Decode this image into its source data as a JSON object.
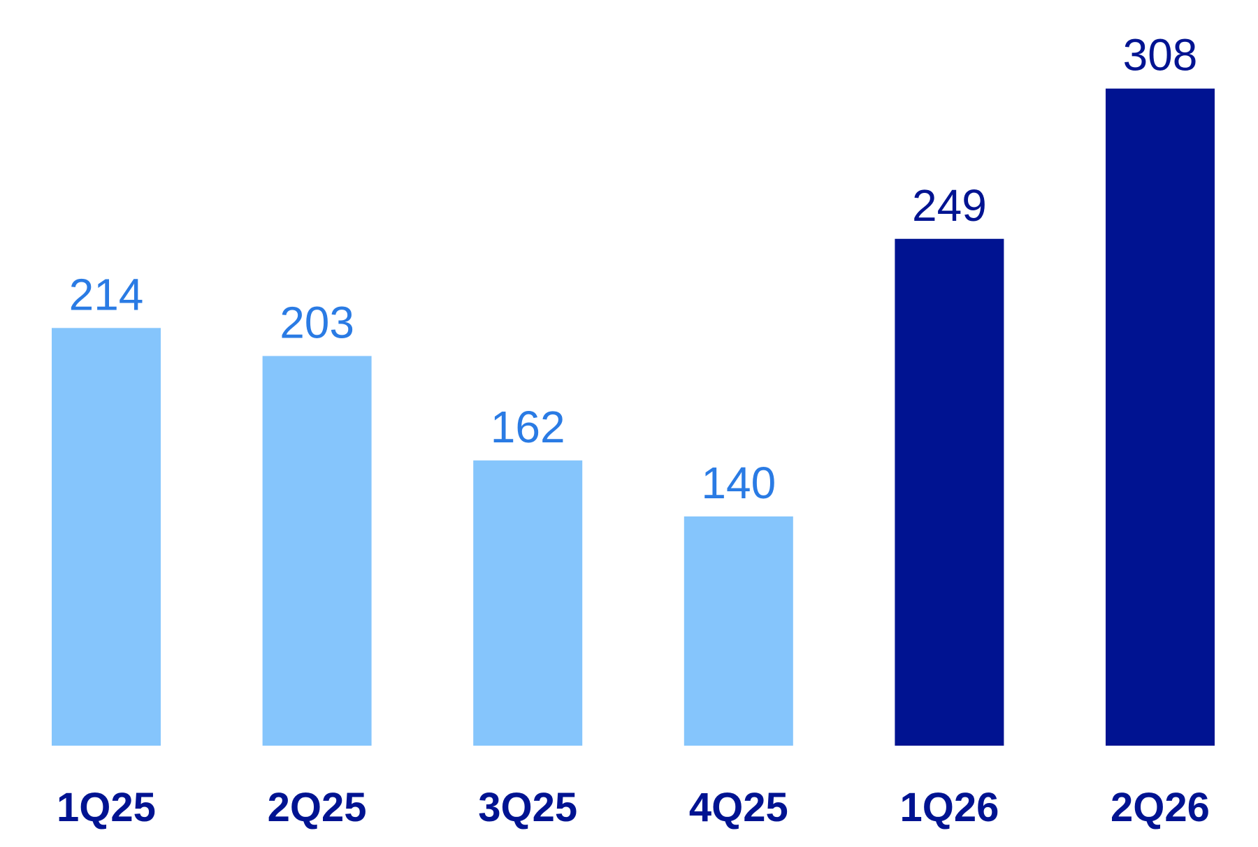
{
  "chart_data": {
    "type": "bar",
    "categories": [
      "1Q25",
      "2Q25",
      "3Q25",
      "4Q25",
      "1Q26",
      "2Q26"
    ],
    "values": [
      214,
      203,
      162,
      140,
      249,
      308
    ],
    "colors": [
      "#85c5fc",
      "#85c5fc",
      "#85c5fc",
      "#85c5fc",
      "#001391",
      "#001391"
    ],
    "label_colors": [
      "#2a7be4",
      "#2a7be4",
      "#2a7be4",
      "#2a7be4",
      "#001391",
      "#001391"
    ],
    "ylim": [
      50,
      320
    ]
  }
}
